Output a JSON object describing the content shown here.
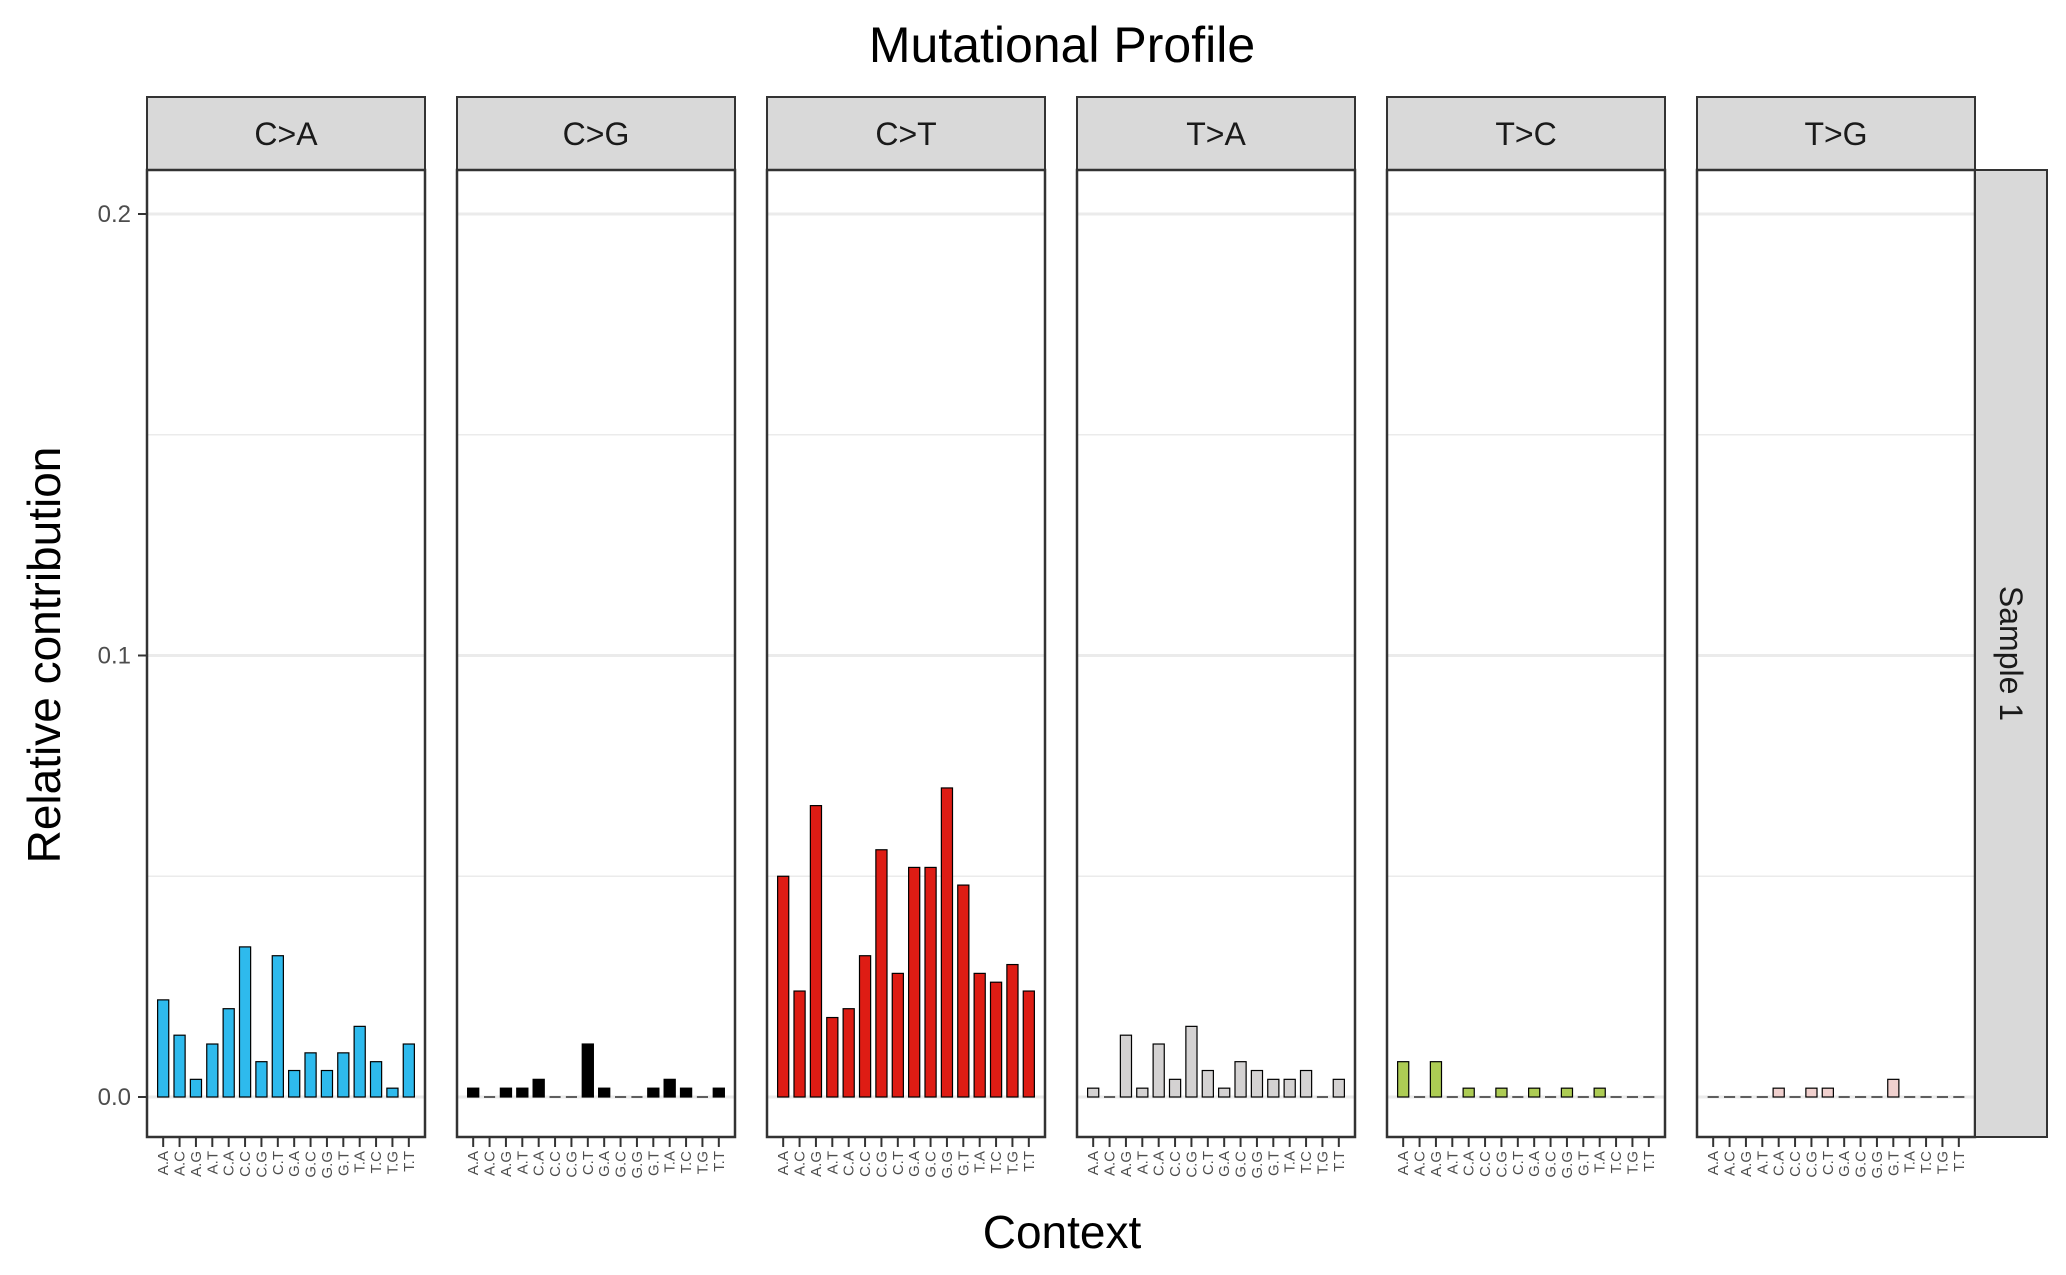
{
  "chart_data": {
    "type": "bar",
    "title": "Mutational Profile",
    "xlabel": "Context",
    "ylabel": "Relative contribution",
    "ylim": [
      0,
      0.2
    ],
    "yticks": [
      "0.0",
      "0.1",
      "0.2"
    ],
    "ytick_values": [
      0,
      0.1,
      0.2
    ],
    "row_facet": "Sample 1",
    "grid": true,
    "legend": "none",
    "contexts": [
      "A.A",
      "A.C",
      "A.G",
      "A.T",
      "C.A",
      "C.C",
      "C.G",
      "C.T",
      "G.A",
      "G.C",
      "G.G",
      "G.T",
      "T.A",
      "T.C",
      "T.G",
      "T.T"
    ],
    "facets": [
      {
        "label": "C>A",
        "color": "#2EBAED",
        "values": [
          0.022,
          0.014,
          0.004,
          0.012,
          0.02,
          0.034,
          0.008,
          0.032,
          0.006,
          0.01,
          0.006,
          0.01,
          0.016,
          0.008,
          0.002,
          0.012
        ]
      },
      {
        "label": "C>G",
        "color": "#000000",
        "values": [
          0.002,
          0.0,
          0.002,
          0.002,
          0.004,
          0.0,
          0.0,
          0.012,
          0.002,
          0.0,
          0.0,
          0.002,
          0.004,
          0.002,
          0.0,
          0.002
        ]
      },
      {
        "label": "C>T",
        "color": "#DE1C14",
        "values": [
          0.05,
          0.024,
          0.066,
          0.018,
          0.02,
          0.032,
          0.056,
          0.028,
          0.052,
          0.052,
          0.07,
          0.048,
          0.028,
          0.026,
          0.03,
          0.024
        ]
      },
      {
        "label": "T>A",
        "color": "#D4D2D2",
        "values": [
          0.002,
          0.0,
          0.014,
          0.002,
          0.012,
          0.004,
          0.016,
          0.006,
          0.002,
          0.008,
          0.006,
          0.004,
          0.004,
          0.006,
          0.0,
          0.004
        ]
      },
      {
        "label": "T>C",
        "color": "#ADCC54",
        "values": [
          0.008,
          0.0,
          0.008,
          0.0,
          0.002,
          0.0,
          0.002,
          0.0,
          0.002,
          0.0,
          0.002,
          0.0,
          0.002,
          0.0,
          0.0,
          0.0
        ]
      },
      {
        "label": "T>G",
        "color": "#F0D0CE",
        "values": [
          0.0,
          0.0,
          0.0,
          0.0,
          0.002,
          0.0,
          0.002,
          0.002,
          0.0,
          0.0,
          0.0,
          0.004,
          0.0,
          0.0,
          0.0,
          0.0
        ]
      }
    ]
  }
}
